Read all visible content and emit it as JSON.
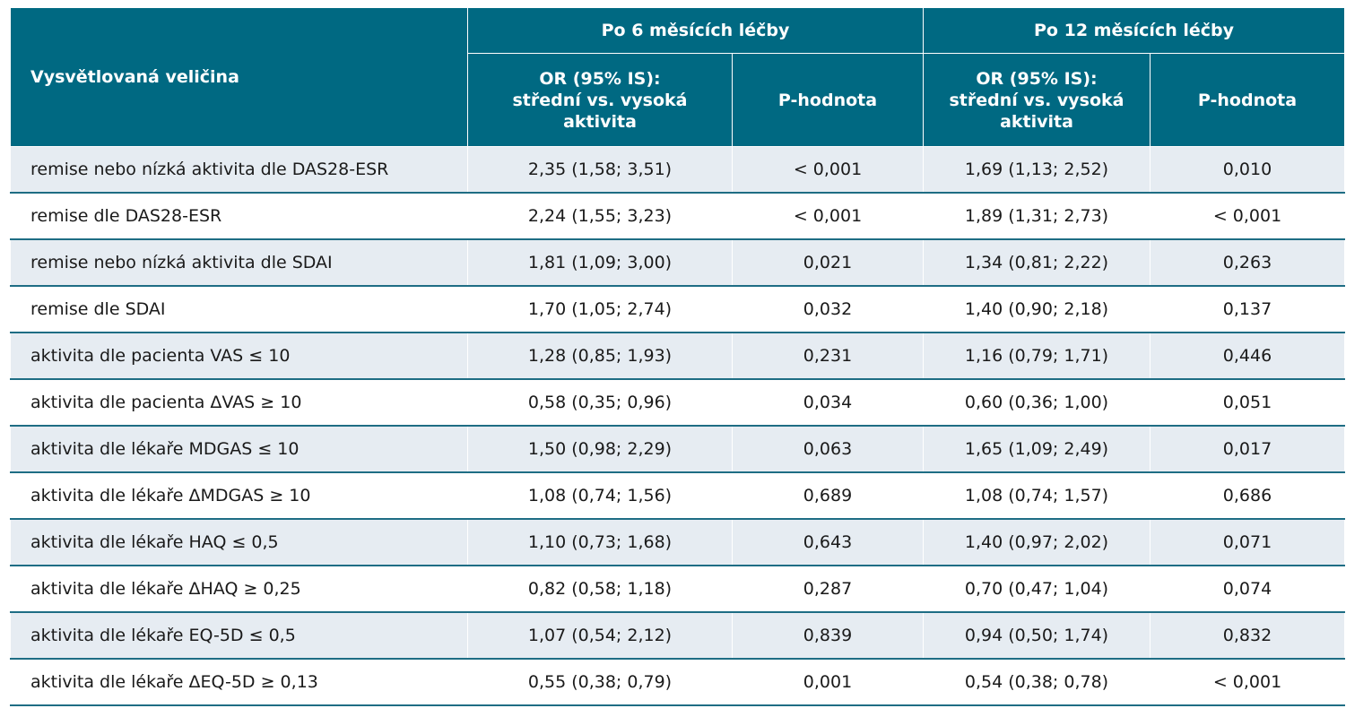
{
  "header": {
    "row_label": "Vysvětlovaná veličina",
    "groups": [
      "Po 6 měsících léčby",
      "Po 12 měsících léčby"
    ],
    "or_label": "OR (95% IS):\nstřední vs. vysoká\naktivita",
    "p_label": "P-hodnota"
  },
  "rows": [
    {
      "label": "remise nebo nízká aktivita dle DAS28-ESR",
      "or6": "2,35 (1,58; 3,51)",
      "p6": "< 0,001",
      "or12": "1,69 (1,13; 2,52)",
      "p12": "0,010"
    },
    {
      "label": "remise dle DAS28-ESR",
      "or6": "2,24 (1,55; 3,23)",
      "p6": "< 0,001",
      "or12": "1,89 (1,31; 2,73)",
      "p12": "< 0,001"
    },
    {
      "label": "remise nebo nízká aktivita dle SDAI",
      "or6": "1,81 (1,09; 3,00)",
      "p6": "0,021",
      "or12": "1,34 (0,81; 2,22)",
      "p12": "0,263"
    },
    {
      "label": "remise dle SDAI",
      "or6": "1,70 (1,05; 2,74)",
      "p6": "0,032",
      "or12": "1,40 (0,90; 2,18)",
      "p12": "0,137"
    },
    {
      "label": "aktivita dle pacienta VAS ≤ 10",
      "or6": "1,28 (0,85; 1,93)",
      "p6": "0,231",
      "or12": "1,16 (0,79; 1,71)",
      "p12": "0,446"
    },
    {
      "label": "aktivita dle pacienta ΔVAS ≥ 10",
      "or6": "0,58 (0,35; 0,96)",
      "p6": "0,034",
      "or12": "0,60 (0,36; 1,00)",
      "p12": "0,051"
    },
    {
      "label": "aktivita dle lékaře MDGAS ≤ 10",
      "or6": "1,50 (0,98; 2,29)",
      "p6": "0,063",
      "or12": "1,65 (1,09; 2,49)",
      "p12": "0,017"
    },
    {
      "label": "aktivita dle lékaře ΔMDGAS ≥ 10",
      "or6": "1,08 (0,74; 1,56)",
      "p6": "0,689",
      "or12": "1,08 (0,74; 1,57)",
      "p12": "0,686"
    },
    {
      "label": "aktivita dle lékaře HAQ ≤ 0,5",
      "or6": "1,10 (0,73; 1,68)",
      "p6": "0,643",
      "or12": "1,40 (0,97; 2,02)",
      "p12": "0,071"
    },
    {
      "label": "aktivita dle lékaře ΔHAQ ≥ 0,25",
      "or6": "0,82 (0,58; 1,18)",
      "p6": "0,287",
      "or12": "0,70 (0,47; 1,04)",
      "p12": "0,074"
    },
    {
      "label": "aktivita dle lékaře EQ-5D ≤ 0,5",
      "or6": "1,07 (0,54; 2,12)",
      "p6": "0,839",
      "or12": "0,94 (0,50; 1,74)",
      "p12": "0,832"
    },
    {
      "label": "aktivita dle lékaře ΔEQ-5D ≥ 0,13",
      "or6": "0,55 (0,38; 0,79)",
      "p6": "0,001",
      "or12": "0,54 (0,38; 0,78)",
      "p12": "< 0,001"
    }
  ]
}
